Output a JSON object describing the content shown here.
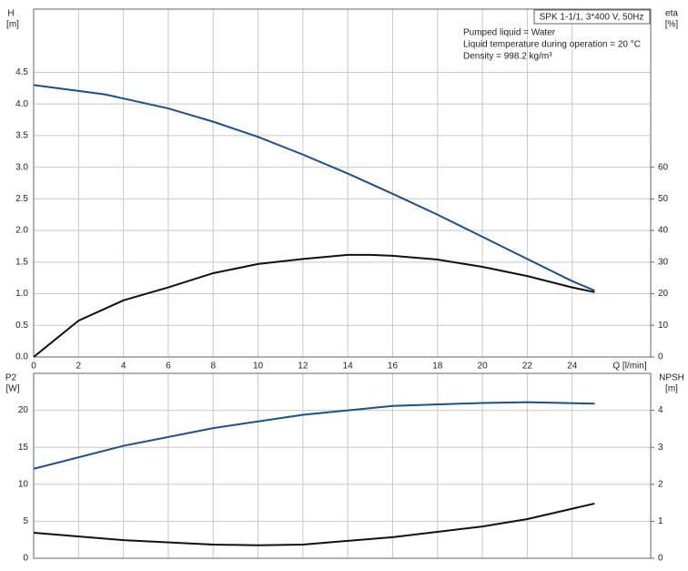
{
  "chart_data": [
    {
      "type": "line",
      "y_label": "H",
      "y_unit": "[m]",
      "y2_label": "eta",
      "y2_unit": "[%]",
      "x_label": "Q [l/min]",
      "annotation_box": "SPK 1-1/1, 3*400 V, 50Hz",
      "annotations": [
        "Pumped liquid = Water",
        "Liquid temperature during operation = 20 °C",
        "Density = 998.2 kg/m³"
      ],
      "xlim": [
        0,
        27.5
      ],
      "xticks": [
        0,
        2,
        4,
        6,
        8,
        10,
        12,
        14,
        16,
        18,
        20,
        22,
        24
      ],
      "show_xtick_labels": true,
      "ylim": [
        0,
        5.5
      ],
      "yticks": [
        {
          "value": 0,
          "label": "0.0"
        },
        0.5,
        {
          "value": 1,
          "label": "1.0"
        },
        1.5,
        {
          "value": 2,
          "label": "2.0"
        },
        2.5,
        {
          "value": 3,
          "label": "3.0"
        },
        3.5,
        {
          "value": 4,
          "label": "4.0"
        },
        4.5
      ],
      "y2lim": [
        0,
        110
      ],
      "y2ticks": [
        0,
        10,
        20,
        30,
        40,
        50,
        60
      ],
      "grid": true,
      "series": [
        {
          "name": "H",
          "color": "#1d4f8a",
          "axis": "y",
          "x": [
            0,
            3.2,
            6,
            8,
            10,
            12,
            14,
            16,
            18,
            20,
            22,
            24,
            25
          ],
          "values": [
            4.3,
            4.15,
            3.93,
            3.72,
            3.48,
            3.2,
            2.9,
            2.58,
            2.25,
            1.9,
            1.55,
            1.2,
            1.05
          ]
        },
        {
          "name": "eta",
          "color": "#111111",
          "axis": "y2",
          "x": [
            0,
            2,
            4,
            6,
            8,
            10,
            12,
            14,
            15,
            16,
            18,
            20,
            22,
            24,
            25
          ],
          "values": [
            0,
            11.5,
            17.9,
            22,
            26.5,
            29.4,
            31,
            32.3,
            32.3,
            32,
            30.8,
            28.5,
            25.6,
            22,
            20.5
          ]
        }
      ]
    },
    {
      "type": "line",
      "y_label": "P2",
      "y_unit": "[W]",
      "y2_label": "NPSH",
      "y2_unit": "[m]",
      "xlim": [
        0,
        27.5
      ],
      "xticks": [
        0,
        2,
        4,
        6,
        8,
        10,
        12,
        14,
        16,
        18,
        20,
        22,
        24
      ],
      "show_xtick_labels": false,
      "ylim": [
        0,
        25
      ],
      "yticks": [
        0,
        5,
        10,
        15,
        20
      ],
      "y2lim": [
        0,
        5
      ],
      "y2ticks": [
        0,
        1,
        2,
        3,
        4
      ],
      "grid": true,
      "series": [
        {
          "name": "P2",
          "color": "#1d4f8a",
          "axis": "y",
          "x": [
            0,
            4,
            8,
            12,
            16,
            20,
            22,
            25
          ],
          "values": [
            12.1,
            15.2,
            17.6,
            19.4,
            20.6,
            21.0,
            21.1,
            20.9
          ]
        },
        {
          "name": "NPSH",
          "color": "#111111",
          "axis": "y2",
          "x": [
            0,
            4,
            8,
            10,
            12,
            16,
            20,
            22,
            25
          ],
          "values": [
            0.69,
            0.49,
            0.37,
            0.35,
            0.37,
            0.57,
            0.86,
            1.06,
            1.48
          ]
        }
      ]
    }
  ]
}
